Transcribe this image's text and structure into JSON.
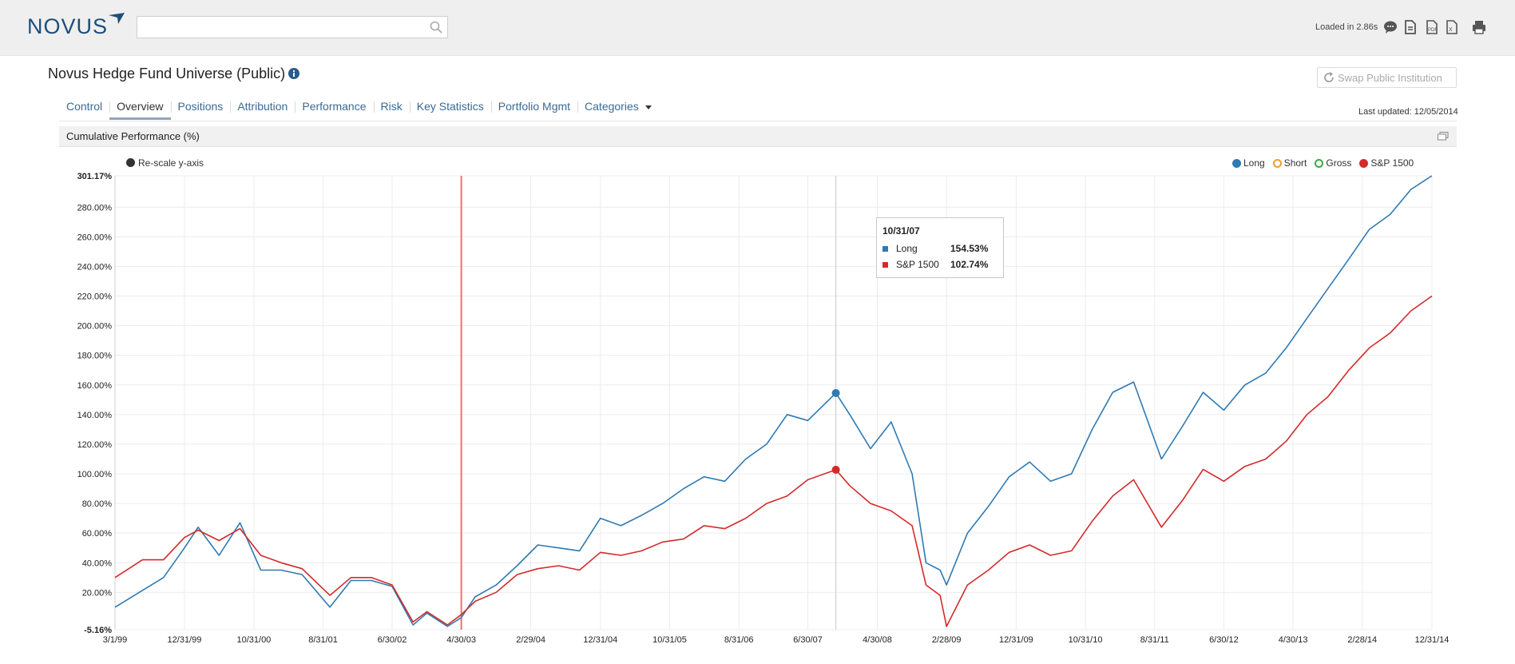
{
  "header": {
    "logo": "NOVUS",
    "search_placeholder": "",
    "loaded_text": "Loaded in 2.86s",
    "toolbar_icons": [
      "comment-icon",
      "document-icon",
      "pdf-icon",
      "excel-icon",
      "print-icon"
    ]
  },
  "page": {
    "title": "Novus Hedge Fund Universe (Public)",
    "swap_label": "Swap Public Institution",
    "last_updated": "Last updated: 12/05/2014"
  },
  "tabs": [
    {
      "label": "Control",
      "active": false
    },
    {
      "label": "Overview",
      "active": true
    },
    {
      "label": "Positions",
      "active": false
    },
    {
      "label": "Attribution",
      "active": false
    },
    {
      "label": "Performance",
      "active": false
    },
    {
      "label": "Risk",
      "active": false
    },
    {
      "label": "Key Statistics",
      "active": false
    },
    {
      "label": "Portfolio Mgmt",
      "active": false
    },
    {
      "label": "Categories",
      "active": false
    }
  ],
  "panel": {
    "title": "Cumulative Performance (%)",
    "rescale_label": "Re-scale y-axis"
  },
  "colors": {
    "long": "#2f7ab3",
    "short": "#f0a030",
    "gross": "#3aa845",
    "sp1500": "#d42a2a",
    "marker_line": "#f07070"
  },
  "chart_data": {
    "type": "line",
    "title": "",
    "xlabel": "",
    "ylabel": "",
    "ylim": [
      -5.16,
      301.17
    ],
    "y_ticks": [
      "301.17%",
      "280.00%",
      "260.00%",
      "240.00%",
      "220.00%",
      "200.00%",
      "180.00%",
      "160.00%",
      "140.00%",
      "120.00%",
      "100.00%",
      "80.00%",
      "60.00%",
      "40.00%",
      "20.00%",
      "-5.16%"
    ],
    "x_ticks": [
      "3/1/99",
      "12/31/99",
      "10/31/00",
      "8/31/01",
      "6/30/02",
      "4/30/03",
      "2/29/04",
      "12/31/04",
      "10/31/05",
      "8/31/06",
      "6/30/07",
      "4/30/08",
      "2/28/09",
      "12/31/09",
      "10/31/10",
      "8/31/11",
      "6/30/12",
      "4/30/13",
      "2/28/14",
      "12/31/14"
    ],
    "legend": [
      {
        "name": "Long",
        "filled": true,
        "color": "#2f7ab3"
      },
      {
        "name": "Short",
        "filled": false,
        "color": "#f0a030"
      },
      {
        "name": "Gross",
        "filled": false,
        "color": "#3aa845"
      },
      {
        "name": "S&P 1500",
        "filled": true,
        "color": "#d42a2a"
      }
    ],
    "legend_position": "top-right",
    "grid": true,
    "vertical_marker_date": "4/30/03",
    "series": [
      {
        "name": "Long",
        "color": "#2f7ab3",
        "points": [
          [
            "3/1/99",
            10
          ],
          [
            "9/30/99",
            30
          ],
          [
            "12/31/99",
            50
          ],
          [
            "2/29/00",
            64
          ],
          [
            "5/31/00",
            45
          ],
          [
            "8/31/00",
            67
          ],
          [
            "11/30/00",
            35
          ],
          [
            "2/28/01",
            35
          ],
          [
            "5/31/01",
            32
          ],
          [
            "9/30/01",
            10
          ],
          [
            "12/31/01",
            28
          ],
          [
            "3/31/02",
            28
          ],
          [
            "6/30/02",
            24
          ],
          [
            "9/30/02",
            -2
          ],
          [
            "11/30/02",
            6
          ],
          [
            "2/28/03",
            -3
          ],
          [
            "4/30/03",
            3
          ],
          [
            "6/30/03",
            17
          ],
          [
            "9/30/03",
            25
          ],
          [
            "12/31/03",
            38
          ],
          [
            "3/31/04",
            52
          ],
          [
            "6/30/04",
            50
          ],
          [
            "9/30/04",
            48
          ],
          [
            "12/31/04",
            70
          ],
          [
            "3/31/05",
            65
          ],
          [
            "6/30/05",
            72
          ],
          [
            "9/30/05",
            80
          ],
          [
            "12/31/05",
            90
          ],
          [
            "3/31/06",
            98
          ],
          [
            "6/30/06",
            95
          ],
          [
            "9/30/06",
            110
          ],
          [
            "12/31/06",
            120
          ],
          [
            "3/31/07",
            140
          ],
          [
            "6/30/07",
            136
          ],
          [
            "10/31/07",
            154.53
          ],
          [
            "12/31/07",
            140
          ],
          [
            "3/31/08",
            117
          ],
          [
            "6/30/08",
            135
          ],
          [
            "9/30/08",
            100
          ],
          [
            "11/30/08",
            40
          ],
          [
            "1/31/09",
            35
          ],
          [
            "2/28/09",
            25
          ],
          [
            "5/31/09",
            60
          ],
          [
            "8/31/09",
            78
          ],
          [
            "11/30/09",
            98
          ],
          [
            "2/28/10",
            108
          ],
          [
            "5/31/10",
            95
          ],
          [
            "8/31/10",
            100
          ],
          [
            "11/30/10",
            130
          ],
          [
            "2/28/11",
            155
          ],
          [
            "5/31/11",
            162
          ],
          [
            "9/30/11",
            110
          ],
          [
            "12/31/11",
            132
          ],
          [
            "3/31/12",
            155
          ],
          [
            "6/30/12",
            143
          ],
          [
            "9/30/12",
            160
          ],
          [
            "12/31/12",
            168
          ],
          [
            "3/31/13",
            185
          ],
          [
            "6/30/13",
            205
          ],
          [
            "9/30/13",
            225
          ],
          [
            "12/31/13",
            245
          ],
          [
            "3/31/14",
            265
          ],
          [
            "6/30/14",
            275
          ],
          [
            "9/30/14",
            292
          ],
          [
            "12/31/14",
            301.17
          ]
        ]
      },
      {
        "name": "S&P 1500",
        "color": "#d42a2a",
        "points": [
          [
            "3/1/99",
            30
          ],
          [
            "6/30/99",
            42
          ],
          [
            "9/30/99",
            42
          ],
          [
            "12/31/99",
            57
          ],
          [
            "2/29/00",
            62
          ],
          [
            "5/31/00",
            55
          ],
          [
            "8/31/00",
            63
          ],
          [
            "11/30/00",
            45
          ],
          [
            "2/28/01",
            40
          ],
          [
            "5/31/01",
            36
          ],
          [
            "9/30/01",
            18
          ],
          [
            "12/31/01",
            30
          ],
          [
            "3/31/02",
            30
          ],
          [
            "6/30/02",
            25
          ],
          [
            "9/30/02",
            0
          ],
          [
            "11/30/02",
            7
          ],
          [
            "2/28/03",
            -2
          ],
          [
            "4/30/03",
            5
          ],
          [
            "6/30/03",
            14
          ],
          [
            "9/30/03",
            20
          ],
          [
            "12/31/03",
            32
          ],
          [
            "3/31/04",
            36
          ],
          [
            "6/30/04",
            38
          ],
          [
            "9/30/04",
            35
          ],
          [
            "12/31/04",
            47
          ],
          [
            "3/31/05",
            45
          ],
          [
            "6/30/05",
            48
          ],
          [
            "9/30/05",
            54
          ],
          [
            "12/31/05",
            56
          ],
          [
            "3/31/06",
            65
          ],
          [
            "6/30/06",
            63
          ],
          [
            "9/30/06",
            70
          ],
          [
            "12/31/06",
            80
          ],
          [
            "3/31/07",
            85
          ],
          [
            "6/30/07",
            96
          ],
          [
            "10/31/07",
            102.74
          ],
          [
            "12/31/07",
            92
          ],
          [
            "3/31/08",
            80
          ],
          [
            "6/30/08",
            75
          ],
          [
            "9/30/08",
            65
          ],
          [
            "11/30/08",
            25
          ],
          [
            "1/31/09",
            18
          ],
          [
            "2/28/09",
            -3
          ],
          [
            "5/31/09",
            25
          ],
          [
            "8/31/09",
            35
          ],
          [
            "11/30/09",
            47
          ],
          [
            "2/28/10",
            52
          ],
          [
            "5/31/10",
            45
          ],
          [
            "8/31/10",
            48
          ],
          [
            "11/30/10",
            68
          ],
          [
            "2/28/11",
            85
          ],
          [
            "5/31/11",
            96
          ],
          [
            "9/30/11",
            64
          ],
          [
            "12/31/11",
            82
          ],
          [
            "3/31/12",
            103
          ],
          [
            "6/30/12",
            95
          ],
          [
            "9/30/12",
            105
          ],
          [
            "12/31/12",
            110
          ],
          [
            "3/31/13",
            122
          ],
          [
            "6/30/13",
            140
          ],
          [
            "9/30/13",
            152
          ],
          [
            "12/31/13",
            170
          ],
          [
            "3/31/14",
            185
          ],
          [
            "6/30/14",
            195
          ],
          [
            "9/30/14",
            210
          ],
          [
            "12/31/14",
            220
          ]
        ]
      }
    ],
    "tooltip": {
      "date": "10/31/07",
      "rows": [
        {
          "name": "Long",
          "value": "154.53%",
          "color": "#2f7ab3"
        },
        {
          "name": "S&P 1500",
          "value": "102.74%",
          "color": "#d42a2a"
        }
      ]
    }
  }
}
